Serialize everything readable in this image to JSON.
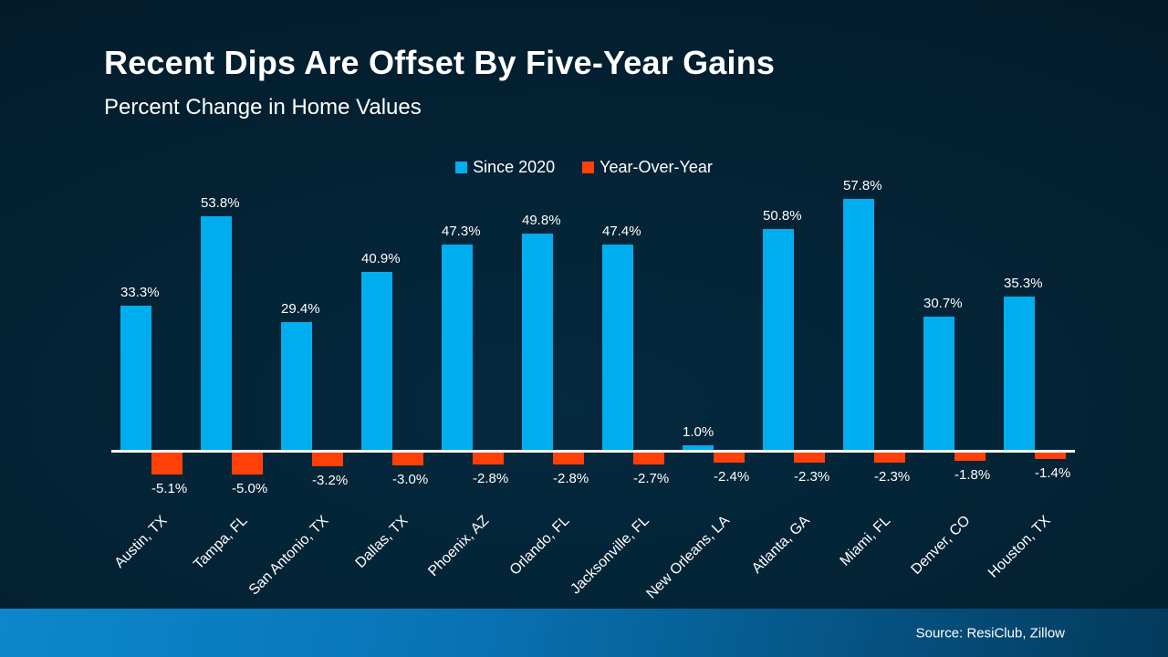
{
  "title": "Recent Dips Are Offset By Five-Year Gains",
  "subtitle": "Percent Change in Home Values",
  "source": "Source: ResiClub, Zillow",
  "colors": {
    "since_2020": "#00AEEF",
    "year_over_year": "#FF4109",
    "background_center": "#05293E",
    "background_edge": "#021622",
    "axis_line": "#FFFFFF",
    "text": "#FFFFFF",
    "footer_left": "#0D87CD",
    "footer_right": "#033A5C"
  },
  "chart_data": {
    "type": "bar",
    "title": "Recent Dips Are Offset By Five-Year Gains",
    "subtitle": "Percent Change in Home Values",
    "categories": [
      "Austin, TX",
      "Tampa, FL",
      "San Antonio, TX",
      "Dallas, TX",
      "Phoenix, AZ",
      "Orlando, FL",
      "Jacksonville, FL",
      "New Orleans, LA",
      "Atlanta, GA",
      "Miami, FL",
      "Denver, CO",
      "Houston, TX"
    ],
    "series": [
      {
        "name": "Since 2020",
        "color": "#00AEEF",
        "values": [
          33.3,
          53.8,
          29.4,
          40.9,
          47.3,
          49.8,
          47.4,
          1.0,
          50.8,
          57.8,
          30.7,
          35.3
        ]
      },
      {
        "name": "Year-Over-Year",
        "color": "#FF4109",
        "values": [
          -5.1,
          -5.0,
          -3.2,
          -3.0,
          -2.8,
          -2.8,
          -2.7,
          -2.4,
          -2.3,
          -2.3,
          -1.8,
          -1.4
        ]
      }
    ],
    "value_label_format": "one decimal + %",
    "ylim": [
      -8,
      62
    ],
    "xlabel": "",
    "ylabel": "",
    "grid": false,
    "legend_position": "top-center",
    "x_tick_rotation": 45
  }
}
